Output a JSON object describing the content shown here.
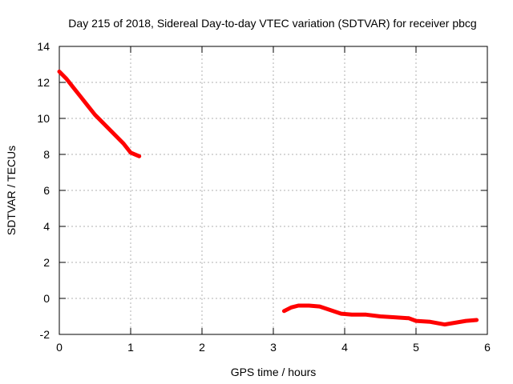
{
  "chart_data": {
    "type": "line",
    "title": "Day 215 of 2018, Sidereal Day-to-day VTEC variation (SDTVAR) for receiver pbcg",
    "xlabel": "GPS time / hours",
    "ylabel": "SDTVAR / TECUs",
    "xlim": [
      0,
      6
    ],
    "ylim": [
      -2,
      14
    ],
    "xticks": [
      "0",
      "1",
      "2",
      "3",
      "4",
      "5",
      "6"
    ],
    "yticks": [
      "-2",
      "0",
      "2",
      "4",
      "6",
      "8",
      "10",
      "12",
      "14"
    ],
    "grid": true,
    "series": [
      {
        "name": "segment-1",
        "color": "#ff0000",
        "points": [
          [
            0.0,
            12.6
          ],
          [
            0.1,
            12.2
          ],
          [
            0.2,
            11.7
          ],
          [
            0.3,
            11.2
          ],
          [
            0.4,
            10.7
          ],
          [
            0.5,
            10.2
          ],
          [
            0.6,
            9.8
          ],
          [
            0.7,
            9.4
          ],
          [
            0.8,
            9.0
          ],
          [
            0.9,
            8.6
          ],
          [
            1.0,
            8.1
          ],
          [
            1.12,
            7.9
          ]
        ]
      },
      {
        "name": "segment-2",
        "color": "#ff0000",
        "points": [
          [
            3.15,
            -0.7
          ],
          [
            3.25,
            -0.5
          ],
          [
            3.35,
            -0.4
          ],
          [
            3.5,
            -0.4
          ],
          [
            3.65,
            -0.45
          ],
          [
            3.8,
            -0.65
          ],
          [
            3.95,
            -0.85
          ],
          [
            4.1,
            -0.9
          ],
          [
            4.3,
            -0.9
          ],
          [
            4.5,
            -1.0
          ],
          [
            4.7,
            -1.05
          ],
          [
            4.9,
            -1.1
          ],
          [
            5.0,
            -1.25
          ],
          [
            5.2,
            -1.3
          ],
          [
            5.4,
            -1.45
          ],
          [
            5.55,
            -1.35
          ],
          [
            5.7,
            -1.25
          ],
          [
            5.85,
            -1.2
          ]
        ]
      }
    ]
  }
}
